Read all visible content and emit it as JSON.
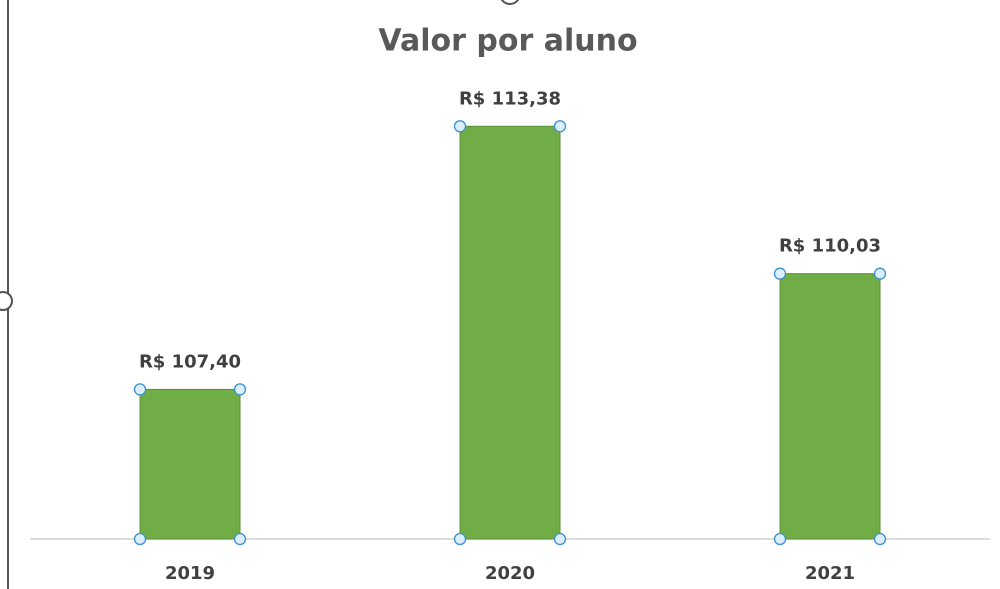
{
  "chart_data": {
    "type": "bar",
    "title": "Valor por aluno",
    "categories": [
      "2019",
      "2020",
      "2021"
    ],
    "values": [
      107.4,
      113.38,
      110.03
    ],
    "value_labels": [
      "R$ 107,40",
      "R$ 113,38",
      "R$ 110,03"
    ],
    "color": "#70ad47",
    "ylim": [
      104,
      114
    ]
  }
}
